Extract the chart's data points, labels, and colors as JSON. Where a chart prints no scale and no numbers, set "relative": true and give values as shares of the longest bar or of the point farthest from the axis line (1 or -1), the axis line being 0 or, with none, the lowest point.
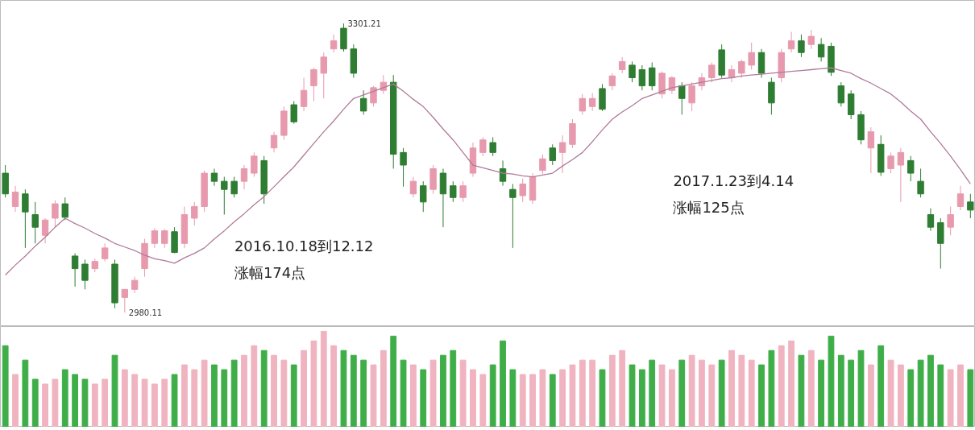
{
  "chart_data": [
    {
      "type": "candlestick",
      "tick_labels": false,
      "categories": [
        null,
        null,
        null,
        null,
        null,
        null,
        null,
        null,
        null,
        null,
        null,
        null,
        null,
        null,
        null,
        null,
        null,
        null,
        null,
        null,
        null,
        null,
        null,
        null,
        null,
        null,
        null,
        null,
        null,
        null,
        null,
        null,
        null,
        null,
        null,
        null,
        null,
        null,
        null,
        null,
        null,
        null,
        null,
        null,
        null,
        null,
        null,
        null,
        null,
        null,
        null,
        null,
        null,
        null,
        null,
        null,
        null,
        null,
        null,
        null,
        null,
        null,
        null,
        null,
        null,
        null,
        null,
        null,
        null,
        null,
        null,
        null,
        null,
        null,
        null,
        null,
        null,
        null,
        null,
        null,
        null,
        null,
        null,
        null,
        null,
        null,
        null,
        null,
        null,
        null,
        null,
        null,
        null,
        null,
        null,
        null,
        null,
        null
      ],
      "ohlc": [
        [
          3135,
          3144,
          3108,
          3112
        ],
        [
          3098,
          3121,
          3092,
          3114
        ],
        [
          3112,
          3117,
          3052,
          3092
        ],
        [
          3089,
          3103,
          3057,
          3075
        ],
        [
          3066,
          3085,
          3057,
          3083
        ],
        [
          3085,
          3105,
          3075,
          3101
        ],
        [
          3101,
          3108,
          3083,
          3086
        ],
        [
          3043,
          3046,
          3009,
          3029
        ],
        [
          3034,
          3039,
          3006,
          3016
        ],
        [
          3029,
          3040,
          3025,
          3037
        ],
        [
          3040,
          3057,
          3037,
          3052
        ],
        [
          3034,
          3039,
          2985,
          2991
        ],
        [
          2997,
          3006,
          2980.11,
          3006
        ],
        [
          3006,
          3020,
          3002,
          3016
        ],
        [
          3029,
          3062,
          3020,
          3057
        ],
        [
          3057,
          3074,
          3052,
          3071
        ],
        [
          3057,
          3073,
          3052,
          3071
        ],
        [
          3070,
          3075,
          3046,
          3047
        ],
        [
          3057,
          3098,
          3052,
          3089
        ],
        [
          3085,
          3103,
          3077,
          3098
        ],
        [
          3098,
          3138,
          3092,
          3135
        ],
        [
          3135,
          3140,
          3121,
          3126
        ],
        [
          3126,
          3131,
          3089,
          3117
        ],
        [
          3126,
          3131,
          3108,
          3112
        ],
        [
          3126,
          3144,
          3117,
          3140
        ],
        [
          3135,
          3158,
          3131,
          3154
        ],
        [
          3149,
          3154,
          3101,
          3112
        ],
        [
          3163,
          3181,
          3158,
          3177
        ],
        [
          3177,
          3209,
          3172,
          3204
        ],
        [
          3211,
          3215,
          3190,
          3192
        ],
        [
          3209,
          3241,
          3204,
          3227
        ],
        [
          3232,
          3252,
          3215,
          3250
        ],
        [
          3246,
          3269,
          3218,
          3264
        ],
        [
          3273,
          3289,
          3269,
          3282
        ],
        [
          3296,
          3301.21,
          3270,
          3273
        ],
        [
          3273,
          3278,
          3241,
          3246
        ],
        [
          3218,
          3227,
          3200,
          3204
        ],
        [
          3213,
          3232,
          3209,
          3230
        ],
        [
          3227,
          3244,
          3223,
          3236
        ],
        [
          3236,
          3244,
          3140,
          3156
        ],
        [
          3158,
          3163,
          3120,
          3144
        ],
        [
          3112,
          3131,
          3108,
          3126
        ],
        [
          3121,
          3126,
          3092,
          3103
        ],
        [
          3117,
          3144,
          3112,
          3140
        ],
        [
          3135,
          3140,
          3075,
          3112
        ],
        [
          3121,
          3126,
          3103,
          3108
        ],
        [
          3108,
          3126,
          3103,
          3121
        ],
        [
          3135,
          3169,
          3131,
          3163
        ],
        [
          3158,
          3175,
          3154,
          3172
        ],
        [
          3169,
          3175,
          3154,
          3158
        ],
        [
          3140,
          3149,
          3121,
          3126
        ],
        [
          3117,
          3123,
          3052,
          3108
        ],
        [
          3110,
          3129,
          3103,
          3123
        ],
        [
          3105,
          3135,
          3101,
          3131
        ],
        [
          3138,
          3156,
          3134,
          3151
        ],
        [
          3163,
          3167,
          3144,
          3149
        ],
        [
          3158,
          3177,
          3135,
          3169
        ],
        [
          3167,
          3195,
          3163,
          3190
        ],
        [
          3204,
          3223,
          3200,
          3218
        ],
        [
          3209,
          3224,
          3204,
          3218
        ],
        [
          3229,
          3234,
          3204,
          3206
        ],
        [
          3232,
          3246,
          3227,
          3243
        ],
        [
          3250,
          3264,
          3246,
          3259
        ],
        [
          3255,
          3259,
          3236,
          3241
        ],
        [
          3250,
          3255,
          3227,
          3232
        ],
        [
          3252,
          3258,
          3227,
          3232
        ],
        [
          3223,
          3248,
          3218,
          3246
        ],
        [
          3227,
          3243,
          3223,
          3241
        ],
        [
          3232,
          3236,
          3200,
          3218
        ],
        [
          3213,
          3236,
          3204,
          3232
        ],
        [
          3232,
          3246,
          3227,
          3241
        ],
        [
          3241,
          3258,
          3236,
          3255
        ],
        [
          3272,
          3278,
          3241,
          3244
        ],
        [
          3241,
          3255,
          3236,
          3250
        ],
        [
          3246,
          3261,
          3241,
          3259
        ],
        [
          3255,
          3280,
          3250,
          3269
        ],
        [
          3269,
          3273,
          3241,
          3246
        ],
        [
          3236,
          3241,
          3200,
          3213
        ],
        [
          3241,
          3273,
          3236,
          3269
        ],
        [
          3273,
          3292,
          3269,
          3282
        ],
        [
          3282,
          3289,
          3264,
          3269
        ],
        [
          3278,
          3294,
          3273,
          3287
        ],
        [
          3278,
          3285,
          3259,
          3264
        ],
        [
          3276,
          3280,
          3243,
          3247
        ],
        [
          3232,
          3236,
          3209,
          3213
        ],
        [
          3223,
          3227,
          3195,
          3200
        ],
        [
          3200,
          3204,
          3167,
          3172
        ],
        [
          3163,
          3186,
          3135,
          3181
        ],
        [
          3167,
          3177,
          3132,
          3136
        ],
        [
          3140,
          3158,
          3135,
          3154
        ],
        [
          3144,
          3163,
          3103,
          3158
        ],
        [
          3149,
          3154,
          3126,
          3135
        ],
        [
          3126,
          3140,
          3108,
          3112
        ],
        [
          3089,
          3096,
          3071,
          3075
        ],
        [
          3080,
          3085,
          3029,
          3057
        ],
        [
          3075,
          3098,
          3066,
          3089
        ],
        [
          3098,
          3121,
          3094,
          3112
        ],
        [
          3103,
          3112,
          3085,
          3094
        ]
      ],
      "colors": [
        "#2e7d32",
        "#e79aae",
        "#2e7d32",
        "#2e7d32",
        "#e79aae",
        "#e79aae",
        "#2e7d32",
        "#2e7d32",
        "#2e7d32",
        "#e79aae",
        "#e79aae",
        "#2e7d32",
        "#e79aae",
        "#e79aae",
        "#e79aae",
        "#e79aae",
        "#e79aae",
        "#2e7d32",
        "#e79aae",
        "#e79aae",
        "#e79aae",
        "#2e7d32",
        "#2e7d32",
        "#2e7d32",
        "#e79aae",
        "#e79aae",
        "#2e7d32",
        "#e79aae",
        "#e79aae",
        "#2e7d32",
        "#e79aae",
        "#e79aae",
        "#e79aae",
        "#e79aae",
        "#2e7d32",
        "#2e7d32",
        "#2e7d32",
        "#e79aae",
        "#e79aae",
        "#2e7d32",
        "#2e7d32",
        "#e79aae",
        "#2e7d32",
        "#e79aae",
        "#2e7d32",
        "#2e7d32",
        "#e79aae",
        "#e79aae",
        "#e79aae",
        "#2e7d32",
        "#2e7d32",
        "#2e7d32",
        "#e79aae",
        "#e79aae",
        "#e79aae",
        "#2e7d32",
        "#e79aae",
        "#e79aae",
        "#e79aae",
        "#e79aae",
        "#2e7d32",
        "#e79aae",
        "#e79aae",
        "#2e7d32",
        "#2e7d32",
        "#2e7d32",
        "#e79aae",
        "#e79aae",
        "#2e7d32",
        "#e79aae",
        "#e79aae",
        "#e79aae",
        "#2e7d32",
        "#e79aae",
        "#e79aae",
        "#e79aae",
        "#2e7d32",
        "#2e7d32",
        "#e79aae",
        "#e79aae",
        "#2e7d32",
        "#e79aae",
        "#2e7d32",
        "#2e7d32",
        "#2e7d32",
        "#2e7d32",
        "#2e7d32",
        "#e79aae",
        "#2e7d32",
        "#e79aae",
        "#e79aae",
        "#2e7d32",
        "#2e7d32",
        "#2e7d32",
        "#2e7d32",
        "#e79aae",
        "#e79aae",
        "#2e7d32"
      ],
      "series": [
        {
          "type": "line",
          "color": "#b07a9a",
          "values": [
            3022,
            3033,
            3043,
            3054,
            3064,
            3075,
            3085,
            3079,
            3074,
            3068,
            3063,
            3057,
            3053,
            3049,
            3044,
            3040,
            3038,
            3035,
            3041,
            3046,
            3052,
            3062,
            3071,
            3081,
            3090,
            3100,
            3109,
            3120,
            3131,
            3142,
            3155,
            3168,
            3181,
            3193,
            3206,
            3218,
            3222,
            3226,
            3230,
            3234,
            3226,
            3217,
            3209,
            3197,
            3184,
            3172,
            3158,
            3144,
            3141,
            3138,
            3135,
            3134,
            3132,
            3131,
            3133,
            3135,
            3143,
            3150,
            3158,
            3170,
            3183,
            3195,
            3203,
            3210,
            3218,
            3222,
            3226,
            3230,
            3232,
            3234,
            3236,
            3238,
            3240,
            3241,
            3243,
            3244,
            3245,
            3246,
            3247,
            3248,
            3249,
            3250,
            3251,
            3252,
            3249,
            3246,
            3240,
            3235,
            3229,
            3223,
            3214,
            3204,
            3195,
            3181,
            3168,
            3154,
            3139,
            3123
          ]
        }
      ],
      "annotations": [
        "3301.21",
        "2980.11",
        "2016.10.18到12.12",
        "涨幅174点",
        "2017.1.23到4.14",
        "涨幅125点"
      ]
    },
    {
      "type": "bar",
      "relative": true,
      "tick_labels": false,
      "categories": [
        null,
        null,
        null,
        null,
        null,
        null,
        null,
        null,
        null,
        null,
        null,
        null,
        null,
        null,
        null,
        null,
        null,
        null,
        null,
        null,
        null,
        null,
        null,
        null,
        null,
        null,
        null,
        null,
        null,
        null,
        null,
        null,
        null,
        null,
        null,
        null,
        null,
        null,
        null,
        null,
        null,
        null,
        null,
        null,
        null,
        null,
        null,
        null,
        null,
        null,
        null,
        null,
        null,
        null,
        null,
        null,
        null,
        null,
        null,
        null,
        null,
        null,
        null,
        null,
        null,
        null,
        null,
        null,
        null,
        null,
        null,
        null,
        null,
        null,
        null,
        null,
        null,
        null,
        null,
        null,
        null,
        null,
        null,
        null,
        null,
        null,
        null,
        null,
        null,
        null,
        null,
        null,
        null,
        null,
        null,
        null,
        null,
        null
      ],
      "values": [
        0.85,
        0.55,
        0.7,
        0.5,
        0.45,
        0.5,
        0.6,
        0.55,
        0.5,
        0.45,
        0.5,
        0.75,
        0.6,
        0.55,
        0.5,
        0.45,
        0.5,
        0.55,
        0.65,
        0.6,
        0.7,
        0.65,
        0.6,
        0.7,
        0.75,
        0.85,
        0.8,
        0.75,
        0.7,
        0.65,
        0.8,
        0.9,
        1.0,
        0.85,
        0.8,
        0.75,
        0.7,
        0.65,
        0.8,
        0.95,
        0.7,
        0.65,
        0.6,
        0.7,
        0.75,
        0.8,
        0.7,
        0.6,
        0.55,
        0.65,
        0.9,
        0.6,
        0.55,
        0.55,
        0.6,
        0.55,
        0.6,
        0.65,
        0.7,
        0.7,
        0.6,
        0.75,
        0.8,
        0.65,
        0.6,
        0.7,
        0.65,
        0.6,
        0.7,
        0.75,
        0.7,
        0.65,
        0.7,
        0.8,
        0.75,
        0.7,
        0.65,
        0.8,
        0.85,
        0.9,
        0.75,
        0.8,
        0.7,
        0.95,
        0.75,
        0.7,
        0.8,
        0.65,
        0.85,
        0.7,
        0.65,
        0.6,
        0.7,
        0.75,
        0.65,
        0.6,
        0.65,
        0.6
      ],
      "colors": [
        "#3fae49",
        "#f0b3c0",
        "#3fae49",
        "#3fae49",
        "#f0b3c0",
        "#f0b3c0",
        "#3fae49",
        "#3fae49",
        "#3fae49",
        "#f0b3c0",
        "#f0b3c0",
        "#3fae49",
        "#f0b3c0",
        "#f0b3c0",
        "#f0b3c0",
        "#f0b3c0",
        "#f0b3c0",
        "#3fae49",
        "#f0b3c0",
        "#f0b3c0",
        "#f0b3c0",
        "#3fae49",
        "#3fae49",
        "#3fae49",
        "#f0b3c0",
        "#f0b3c0",
        "#3fae49",
        "#f0b3c0",
        "#f0b3c0",
        "#3fae49",
        "#f0b3c0",
        "#f0b3c0",
        "#f0b3c0",
        "#f0b3c0",
        "#3fae49",
        "#3fae49",
        "#3fae49",
        "#f0b3c0",
        "#f0b3c0",
        "#3fae49",
        "#3fae49",
        "#f0b3c0",
        "#3fae49",
        "#f0b3c0",
        "#3fae49",
        "#3fae49",
        "#f0b3c0",
        "#f0b3c0",
        "#f0b3c0",
        "#3fae49",
        "#3fae49",
        "#3fae49",
        "#f0b3c0",
        "#f0b3c0",
        "#f0b3c0",
        "#3fae49",
        "#f0b3c0",
        "#f0b3c0",
        "#f0b3c0",
        "#f0b3c0",
        "#3fae49",
        "#f0b3c0",
        "#f0b3c0",
        "#3fae49",
        "#3fae49",
        "#3fae49",
        "#f0b3c0",
        "#f0b3c0",
        "#3fae49",
        "#f0b3c0",
        "#f0b3c0",
        "#f0b3c0",
        "#3fae49",
        "#f0b3c0",
        "#f0b3c0",
        "#f0b3c0",
        "#3fae49",
        "#3fae49",
        "#f0b3c0",
        "#f0b3c0",
        "#3fae49",
        "#f0b3c0",
        "#3fae49",
        "#3fae49",
        "#3fae49",
        "#3fae49",
        "#3fae49",
        "#f0b3c0",
        "#3fae49",
        "#f0b3c0",
        "#f0b3c0",
        "#3fae49",
        "#3fae49",
        "#3fae49",
        "#3fae49",
        "#f0b3c0",
        "#f0b3c0",
        "#3fae49"
      ]
    }
  ]
}
